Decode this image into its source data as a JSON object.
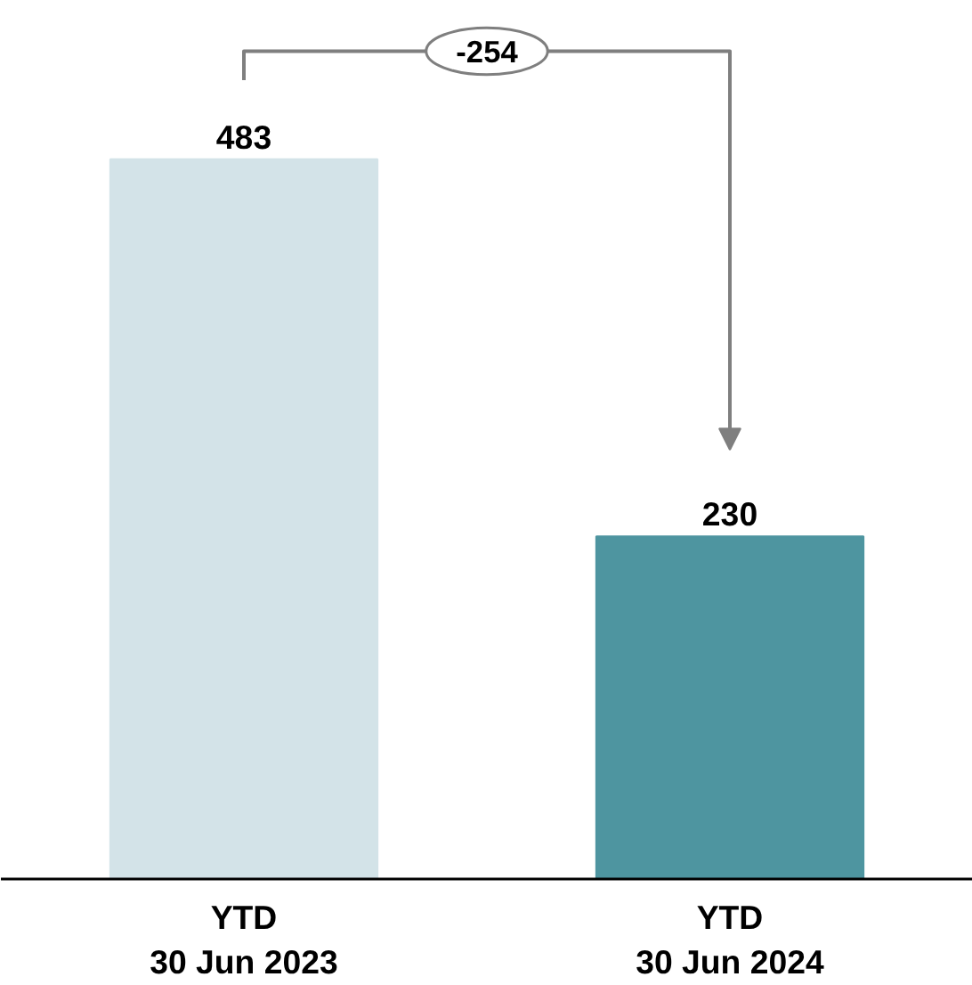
{
  "chart_data": {
    "type": "bar",
    "categories": [
      "YTD\n30 Jun 2023",
      "YTD\n30 Jun 2024"
    ],
    "values": [
      483,
      230
    ],
    "colors": [
      "#d3e3e8",
      "#4e95a0"
    ],
    "data_labels": true,
    "grid": false,
    "annotations": [
      "-254"
    ]
  }
}
